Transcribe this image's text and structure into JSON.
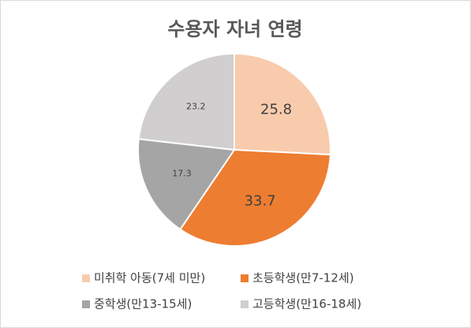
{
  "chart_data": {
    "type": "pie",
    "title": "수용자 자녀 연령",
    "categories": [
      "미취학 아동(7세 미만)",
      "초등학생(만7-12세)",
      "중학생(만13-15세)",
      "고등학생(만16-18세)"
    ],
    "values": [
      25.8,
      33.7,
      17.3,
      23.2
    ],
    "colors": [
      "#f8cbad",
      "#ed7d31",
      "#a5a5a5",
      "#d0cece"
    ]
  }
}
